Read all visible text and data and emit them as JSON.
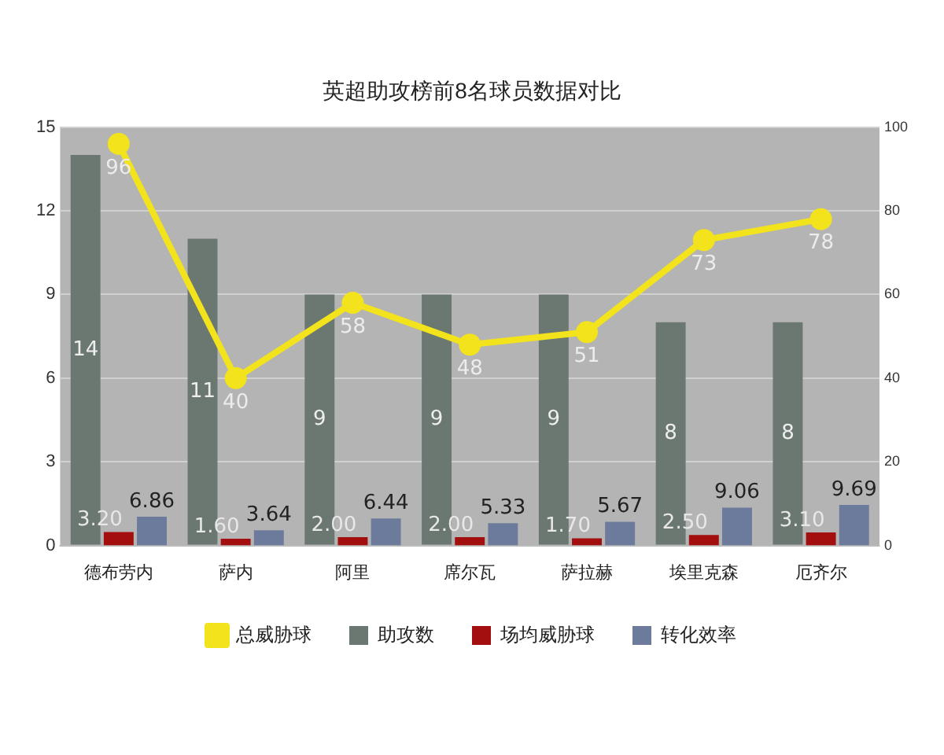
{
  "chart_data": {
    "type": "bar",
    "title": "英超助攻榜前8名球员数据对比",
    "categories": [
      "德布劳内",
      "萨内",
      "阿里",
      "席尔瓦",
      "萨拉赫",
      "埃里克森",
      "厄齐尔"
    ],
    "series": [
      {
        "name": "助攻数",
        "color": "#6b7872",
        "values": [
          14,
          11,
          9,
          9,
          9,
          8,
          8
        ]
      },
      {
        "name": "场均威胁球",
        "color": "#a30f0f",
        "axis": "y2",
        "values": [
          3.2,
          1.6,
          2.0,
          2.0,
          1.7,
          2.5,
          3.1
        ],
        "value_labels": [
          "3.20",
          "1.60",
          "2.00",
          "2.00",
          "1.70",
          "2.50",
          "3.10"
        ]
      },
      {
        "name": "总威胁球",
        "type": "line",
        "color": "#f2e31c",
        "axis": "y2",
        "values": [
          96,
          40,
          58,
          48,
          51,
          73,
          78
        ]
      },
      {
        "name": "转化效率",
        "color": "#6c7b9c",
        "axis": "y2",
        "values": [
          6.86,
          3.64,
          6.44,
          5.33,
          5.67,
          9.06,
          9.69
        ]
      }
    ],
    "ylim": [
      0,
      15
    ],
    "yticks": [
      0,
      3,
      6,
      9,
      12,
      15
    ],
    "y2lim": [
      0,
      100
    ],
    "y2ticks": [
      0,
      20,
      40,
      60,
      80,
      100
    ],
    "grid": "y",
    "legend": "bottom",
    "marker": "circle",
    "line_style": "solid",
    "data_labels": true
  }
}
